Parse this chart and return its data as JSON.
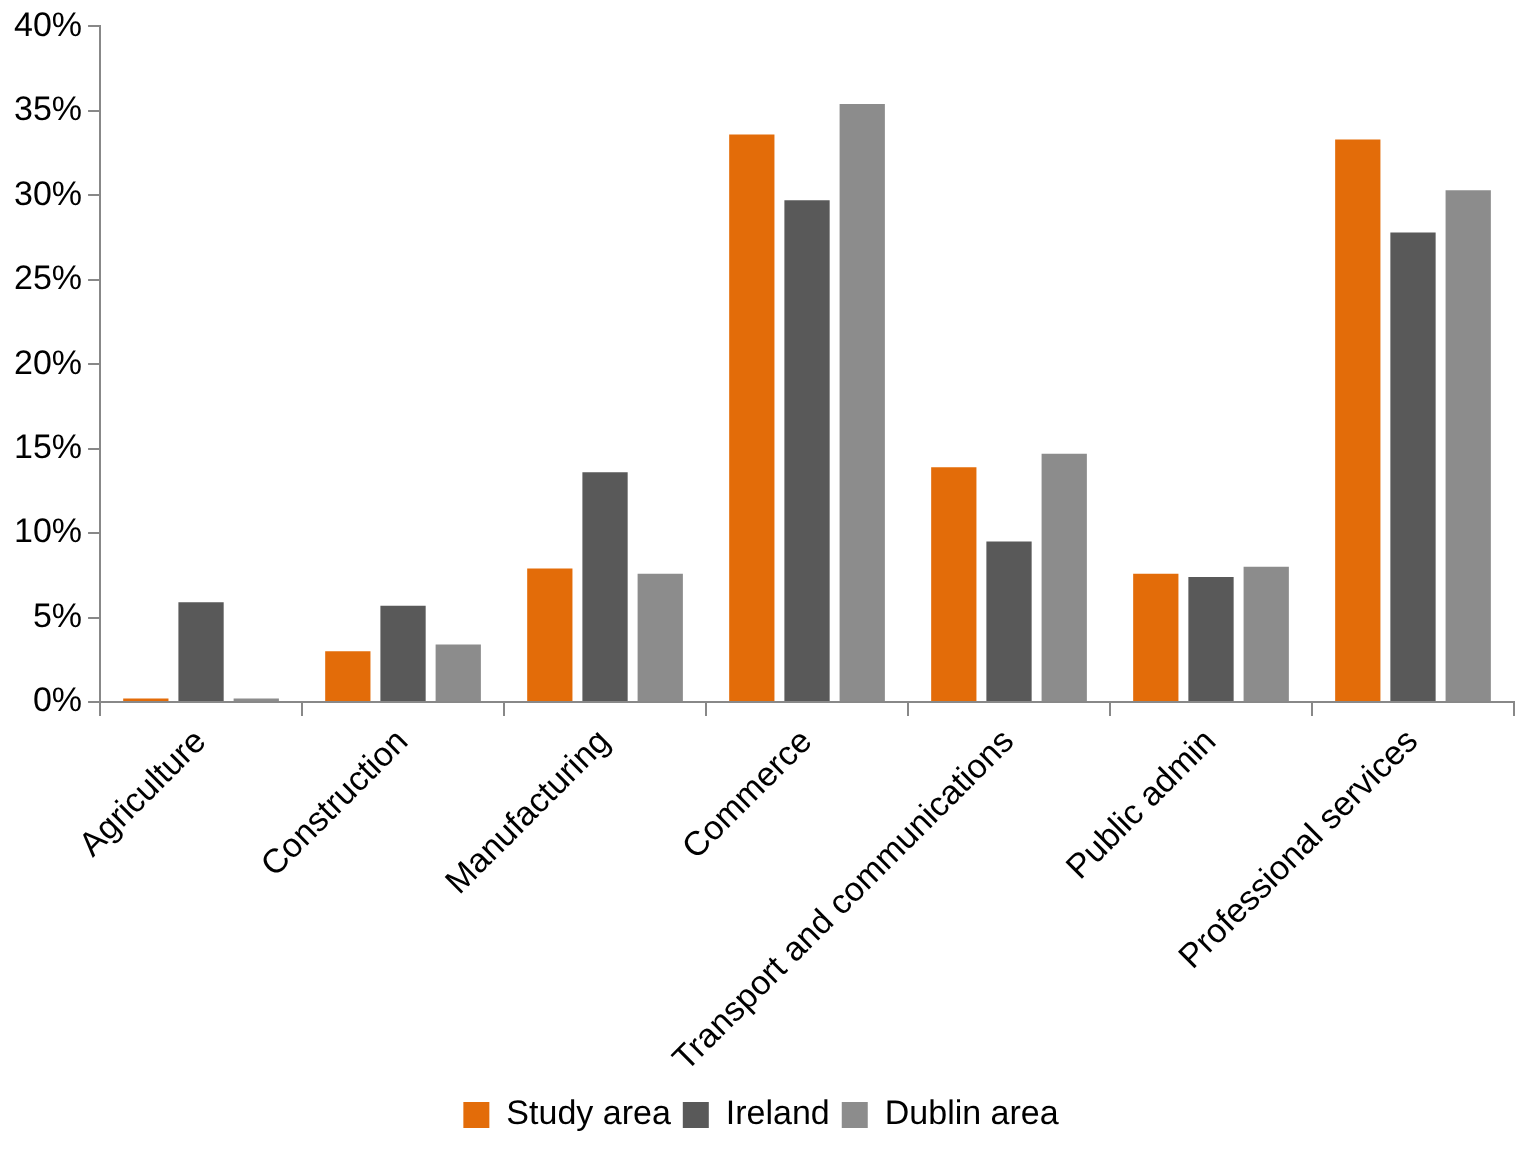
{
  "chart_data": {
    "type": "bar",
    "categories": [
      "Agriculture",
      "Construction",
      "Manufacturing",
      "Commerce",
      "Transport and communications",
      "Public admin",
      "Professional services"
    ],
    "series": [
      {
        "name": "Study area",
        "color": "#e36c09",
        "values": [
          0.2,
          3.0,
          7.9,
          33.6,
          13.9,
          7.6,
          33.3
        ]
      },
      {
        "name": "Ireland",
        "color": "#595959",
        "values": [
          5.9,
          5.7,
          13.6,
          29.7,
          9.5,
          7.4,
          27.8
        ]
      },
      {
        "name": "Dublin area",
        "color": "#8c8c8c",
        "values": [
          0.2,
          3.4,
          7.6,
          35.4,
          14.7,
          8.0,
          30.3
        ]
      }
    ],
    "ylim": [
      0,
      40
    ],
    "yticks": [
      {
        "value": 0,
        "label": "0%"
      },
      {
        "value": 5,
        "label": "5%"
      },
      {
        "value": 10,
        "label": "10%"
      },
      {
        "value": 15,
        "label": "15%"
      },
      {
        "value": 20,
        "label": "20%"
      },
      {
        "value": 25,
        "label": "25%"
      },
      {
        "value": 30,
        "label": "30%"
      },
      {
        "value": 35,
        "label": "35%"
      },
      {
        "value": 40,
        "label": "40%"
      }
    ],
    "legend": "bottom"
  }
}
